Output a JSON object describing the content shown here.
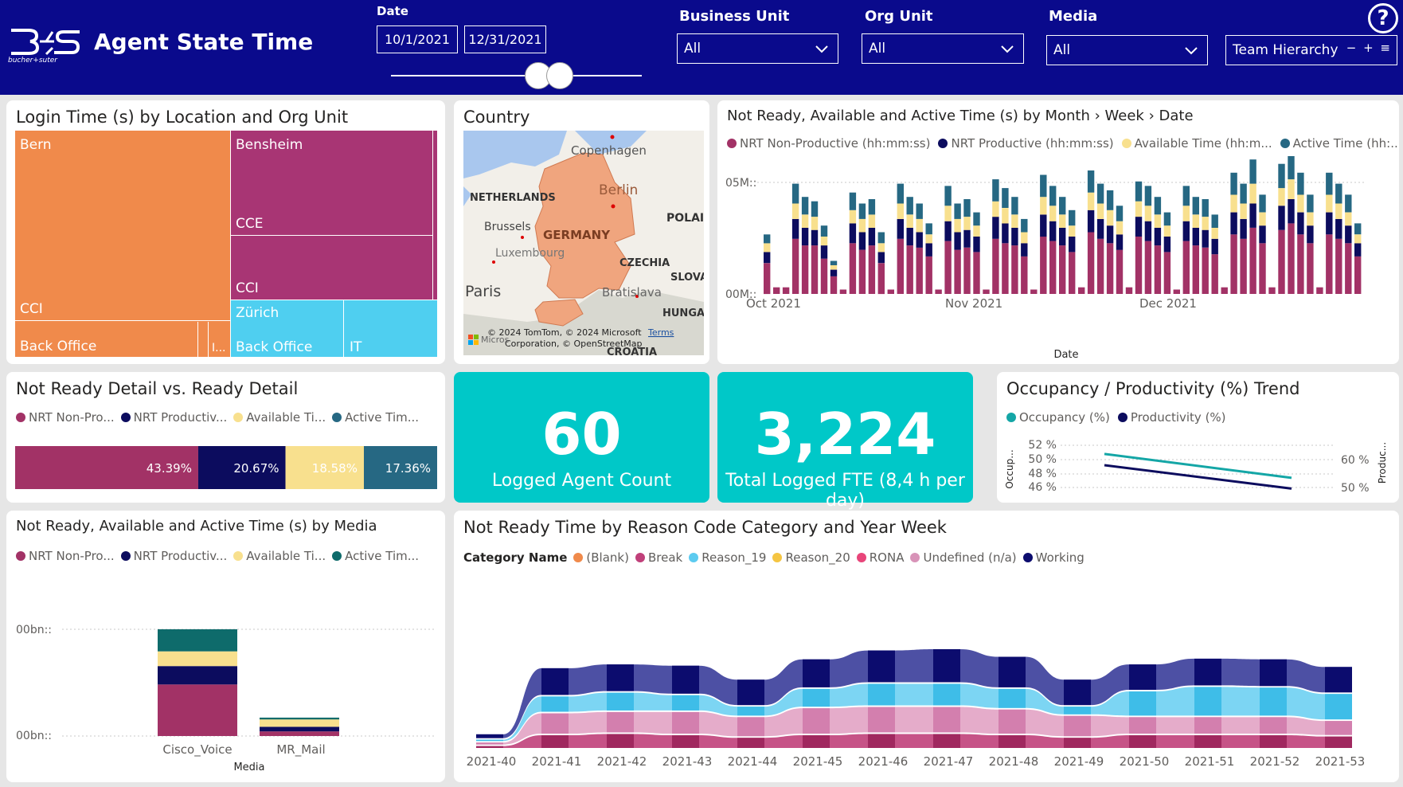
{
  "header": {
    "logo_text": "bucher+suter",
    "title": "Agent State Time",
    "date_label": "Date",
    "date_start": "10/1/2021",
    "date_end": "12/31/2021",
    "business_unit_label": "Business Unit",
    "business_unit_value": "All",
    "org_unit_label": "Org Unit",
    "org_unit_value": "All",
    "media_label": "Media",
    "media_value": "All",
    "team_hierarchy": "Team Hierarchy",
    "team_controls": "− + ≡",
    "help": "?"
  },
  "treemap": {
    "title": "Login Time (s) by Location and Org Unit",
    "bern": "Bern",
    "bern_cci": "CCI",
    "bern_back_office": "Back Office",
    "bern_small": "I...",
    "bensheim": "Bensheim",
    "bensheim_cce": "CCE",
    "bensheim_cci": "CCI",
    "zurich": "Zürich",
    "zurich_back_office": "Back Office",
    "zurich_it": "IT"
  },
  "map": {
    "title": "Country",
    "labels": {
      "copenhagen": "Copenhagen",
      "netherlands": "NETHERLANDS",
      "berlin": "Berlin",
      "poland": "POLAI",
      "brussels": "Brussels",
      "germany": "GERMANY",
      "luxembourg": "Luxembourg",
      "czechia": "CZECHIA",
      "slovakia": "SLOVA",
      "paris": "Paris",
      "bratislava": "Bratislava",
      "hungary": "HUNGA",
      "croatia": "CROATIA"
    },
    "attribution_1": "© 2024 TomTom, © 2024 Microsoft",
    "attribution_2": "Corporation, © OpenStreetMap",
    "terms": "Terms",
    "ms_label": "Micros"
  },
  "colors": {
    "nrt_nonprod": "#a23266",
    "nrt_prod": "#0c0c5e",
    "available": "#f8e08e",
    "active": "#266883",
    "active_media": "#0e6b6b",
    "kpi": "#00c8c8",
    "occupancy": "#14a6a6",
    "productivity": "#0c0c5e"
  },
  "timeseries": {
    "title": "Not Ready, Available and Active Time (s) by Month › Week › Date",
    "legend": [
      "NRT Non-Productive (hh:mm:ss)",
      "NRT Productive (hh:mm:ss)",
      "Available Time (hh:m...",
      "Active Time (hh:..."
    ],
    "y_top": "05M::",
    "y_bottom": "00M::",
    "x_labels": [
      "Oct 2021",
      "Nov 2021",
      "Dec 2021"
    ],
    "x_title": "Date"
  },
  "chart_data": [
    {
      "type": "bar",
      "title": "Not Ready, Available and Active Time (s) by Month › Week › Date",
      "xlabel": "Date",
      "categories_note": "daily values, weekdays Oct–Dec 2021",
      "series": [
        {
          "name": "NRT Non-Productive (hh:mm:ss)",
          "values": [
            1.4,
            0.3,
            0.3,
            2.5,
            2.2,
            2.2,
            1.6,
            0.8,
            0.2,
            2.3,
            2.0,
            2.2,
            1.4,
            0.2,
            2.5,
            2.2,
            2.1,
            1.7,
            0.2,
            2.4,
            2.0,
            2.1,
            1.9,
            0.2,
            2.5,
            2.3,
            2.2,
            1.7,
            0.2,
            2.6,
            2.4,
            2.2,
            1.9,
            0.3,
            2.8,
            2.5,
            2.3,
            2.0,
            0.3,
            2.6,
            2.4,
            2.2,
            1.9,
            0.2,
            2.4,
            2.2,
            2.1,
            1.8,
            0.3,
            2.7,
            2.5,
            3.0,
            2.3,
            0.3,
            2.9,
            3.2,
            2.7,
            2.3,
            0.3,
            2.7,
            2.5,
            2.3,
            1.7
          ]
        },
        {
          "name": "NRT Productive (hh:mm:ss)",
          "values": [
            0.5,
            0.0,
            0.0,
            0.9,
            0.8,
            0.7,
            0.6,
            0.3,
            0.0,
            0.9,
            0.8,
            0.8,
            0.5,
            0.0,
            0.9,
            0.8,
            0.7,
            0.6,
            0.0,
            0.9,
            0.8,
            0.8,
            0.7,
            0.0,
            1.0,
            0.9,
            0.8,
            0.6,
            0.0,
            1.0,
            0.9,
            0.8,
            0.7,
            0.0,
            1.0,
            0.9,
            0.8,
            0.7,
            0.0,
            0.9,
            0.9,
            0.8,
            0.7,
            0.0,
            0.9,
            0.8,
            0.8,
            0.7,
            0.0,
            1.0,
            0.9,
            1.1,
            0.8,
            0.0,
            1.1,
            1.1,
            1.0,
            0.8,
            0.0,
            1.0,
            0.9,
            0.8,
            0.6
          ]
        },
        {
          "name": "Available Time (hh:m...",
          "values": [
            0.4,
            0.0,
            0.0,
            0.7,
            0.6,
            0.6,
            0.4,
            0.2,
            0.0,
            0.6,
            0.6,
            0.6,
            0.4,
            0.0,
            0.7,
            0.6,
            0.6,
            0.4,
            0.0,
            0.7,
            0.6,
            0.6,
            0.5,
            0.0,
            0.7,
            0.7,
            0.6,
            0.5,
            0.0,
            0.8,
            0.7,
            0.6,
            0.5,
            0.0,
            0.8,
            0.7,
            0.7,
            0.6,
            0.0,
            0.7,
            0.7,
            0.6,
            0.5,
            0.0,
            0.7,
            0.6,
            0.6,
            0.5,
            0.0,
            0.8,
            0.7,
            0.9,
            0.6,
            0.0,
            0.8,
            0.9,
            0.8,
            0.6,
            0.0,
            0.8,
            0.7,
            0.6,
            0.4
          ]
        },
        {
          "name": "Active Time (hh:...",
          "values": [
            0.4,
            0.0,
            0.0,
            0.9,
            0.8,
            0.7,
            0.5,
            0.2,
            0.0,
            0.8,
            0.7,
            0.7,
            0.5,
            0.0,
            0.9,
            0.8,
            0.7,
            0.5,
            0.0,
            0.9,
            0.7,
            0.8,
            0.6,
            0.0,
            1.0,
            0.9,
            0.8,
            0.6,
            0.0,
            1.0,
            0.9,
            0.8,
            0.7,
            0.0,
            1.0,
            0.9,
            0.9,
            0.7,
            0.0,
            0.9,
            0.9,
            0.8,
            0.6,
            0.0,
            0.9,
            0.8,
            0.8,
            0.6,
            0.0,
            1.0,
            0.9,
            1.1,
            0.8,
            0.0,
            1.1,
            1.2,
            1.0,
            0.8,
            0.0,
            1.0,
            0.9,
            0.8,
            0.5
          ]
        }
      ]
    },
    {
      "type": "bar",
      "title": "Not Ready Detail vs. Ready Detail",
      "stacked_percent": true,
      "series": [
        {
          "name": "NRT Non-Pro...",
          "value": 43.39,
          "label": "43.39%"
        },
        {
          "name": "NRT Productiv...",
          "value": 20.67,
          "label": "20.67%"
        },
        {
          "name": "Available Ti...",
          "value": 18.58,
          "label": "18.58%"
        },
        {
          "name": "Active Tim...",
          "value": 17.36,
          "label": "17.36%"
        }
      ]
    },
    {
      "type": "bar",
      "title": "Not Ready, Available and Active Time (s) by Media",
      "xlabel": "Media",
      "categories": [
        "Cisco_Voice",
        "MR_Mail"
      ],
      "series": [
        {
          "name": "NRT Non-Pro...",
          "values": [
            56,
            5
          ]
        },
        {
          "name": "NRT Productiv...",
          "values": [
            20,
            5
          ]
        },
        {
          "name": "Available Ti...",
          "values": [
            16,
            8
          ]
        },
        {
          "name": "Active Tim...",
          "values": [
            24,
            2
          ]
        }
      ]
    },
    {
      "type": "line",
      "title": "Occupancy / Productivity (%) Trend",
      "series": [
        {
          "name": "Occupancy (%)",
          "axis": "left",
          "x": [
            0,
            1
          ],
          "values": [
            51.0,
            47.6
          ]
        },
        {
          "name": "Productivity (%)",
          "axis": "right",
          "x": [
            0,
            1
          ],
          "values": [
            60.0,
            51.6
          ]
        }
      ],
      "y_left_ticks": [
        "52 %",
        "50 %",
        "48 %",
        "46 %"
      ],
      "y_right_ticks": [
        "60 %",
        "50 %"
      ],
      "ylabel_left": "Occup...",
      "ylabel_right": "Produc..."
    },
    {
      "type": "area",
      "title": "Not Ready Time by Reason Code Category and Year Week",
      "categories": [
        "2021-40",
        "2021-41",
        "2021-42",
        "2021-43",
        "2021-44",
        "2021-45",
        "2021-46",
        "2021-47",
        "2021-48",
        "2021-49",
        "2021-50",
        "2021-51",
        "2021-52",
        "2021-53"
      ],
      "series": [
        {
          "name": "(Blank)",
          "values": [
            0,
            0,
            0,
            0,
            0,
            0,
            0,
            0,
            0,
            0,
            0,
            0,
            0,
            0
          ]
        },
        {
          "name": "Break",
          "values": [
            3,
            20,
            22,
            20,
            16,
            20,
            22,
            22,
            20,
            16,
            20,
            20,
            20,
            18
          ]
        },
        {
          "name": "Reason_19",
          "values": [
            2,
            24,
            28,
            24,
            14,
            28,
            34,
            34,
            30,
            12,
            38,
            45,
            44,
            40
          ]
        },
        {
          "name": "Reason_20",
          "values": [
            0,
            0,
            0,
            0,
            0,
            0,
            0,
            0,
            0,
            0,
            0,
            0,
            0,
            0
          ]
        },
        {
          "name": "RONA",
          "values": [
            0,
            0,
            0,
            0,
            0,
            0,
            0,
            0,
            0,
            0,
            0,
            0,
            0,
            0
          ]
        },
        {
          "name": "Undefined (n/a)",
          "values": [
            3,
            32,
            32,
            34,
            30,
            40,
            40,
            40,
            38,
            32,
            26,
            26,
            26,
            22
          ]
        },
        {
          "name": "Working",
          "values": [
            6,
            42,
            42,
            44,
            40,
            44,
            50,
            52,
            48,
            40,
            40,
            42,
            42,
            40
          ]
        }
      ]
    }
  ],
  "notready": {
    "title": "Not Ready Detail vs. Ready Detail",
    "legend": [
      "NRT Non-Pro...",
      "NRT Productiv...",
      "Available Ti...",
      "Active Tim..."
    ],
    "labels": [
      "43.39%",
      "20.67%",
      "18.58%",
      "17.36%"
    ]
  },
  "kpi1": {
    "value": "60",
    "label": "Logged Agent Count"
  },
  "kpi2": {
    "value": "3,224",
    "label": "Total Logged FTE (8,4 h per day)"
  },
  "occupancy": {
    "title": "Occupancy / Productivity (%) Trend",
    "legend": [
      "Occupancy (%)",
      "Productivity (%)"
    ],
    "y_left": [
      "52 %",
      "50 %",
      "48 %",
      "46 %"
    ],
    "y_right": [
      "60 %",
      "50 %"
    ],
    "ylabel_left": "Occup...",
    "ylabel_right": "Produc..."
  },
  "media": {
    "title": "Not Ready, Available and Active Time (s) by Media",
    "legend": [
      "NRT Non-Pro...",
      "NRT Productiv...",
      "Available Ti...",
      "Active Tim..."
    ],
    "y_top": "00bn::",
    "y_bottom": "00bn::",
    "categories": [
      "Cisco_Voice",
      "MR_Mail"
    ],
    "x_title": "Media"
  },
  "reason": {
    "title": "Not Ready Time by Reason Code Category and Year Week",
    "legend_title": "Category Name",
    "legend": [
      "(Blank)",
      "Break",
      "Reason_19",
      "Reason_20",
      "RONA",
      "Undefined (n/a)",
      "Working"
    ],
    "legend_colors": [
      "#f08a4b",
      "#c0407a",
      "#5ccbf0",
      "#f5c542",
      "#e8457a",
      "#d893b8",
      "#0c0c6e"
    ],
    "weeks": [
      "2021-40",
      "2021-41",
      "2021-42",
      "2021-43",
      "2021-44",
      "2021-45",
      "2021-46",
      "2021-47",
      "2021-48",
      "2021-49",
      "2021-50",
      "2021-51",
      "2021-52",
      "2021-53"
    ]
  }
}
